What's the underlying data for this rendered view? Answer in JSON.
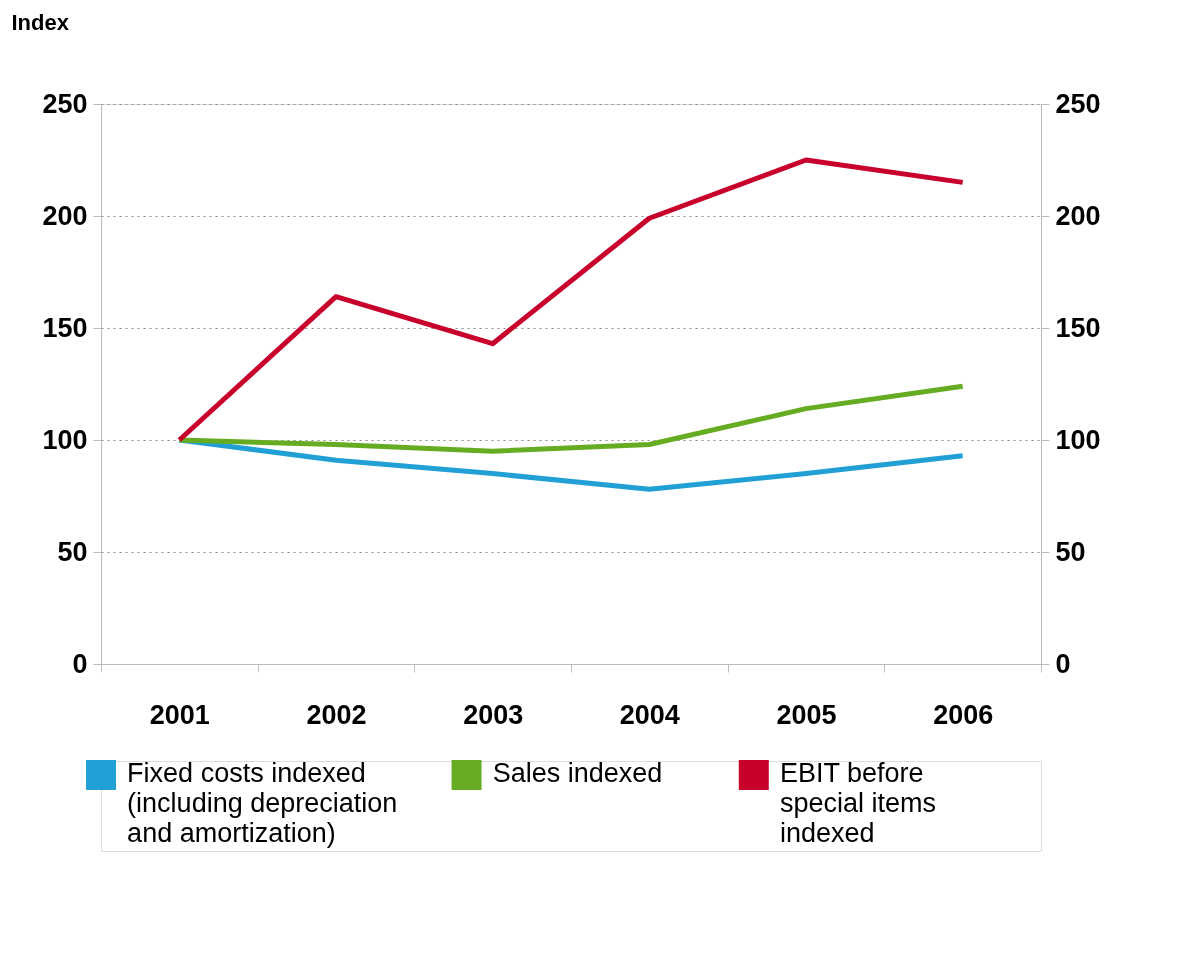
{
  "chart_data": {
    "type": "line",
    "ylabel": "Index",
    "categories": [
      "2001",
      "2002",
      "2003",
      "2004",
      "2005",
      "2006"
    ],
    "series": [
      {
        "name": "Fixed costs indexed (including depreciation and amortization)",
        "color": "#22a0d6",
        "values": [
          100,
          91,
          85,
          78,
          85,
          93
        ]
      },
      {
        "name": "Sales indexed",
        "color": "#66ac22",
        "values": [
          100,
          98,
          95,
          98,
          114,
          124
        ]
      },
      {
        "name": "EBIT before special items indexed",
        "color": "#c8002c",
        "values": [
          100,
          164,
          143,
          199,
          225,
          215
        ]
      }
    ],
    "ylim": [
      0,
      250
    ],
    "yticks": [
      0,
      50,
      100,
      150,
      200,
      250
    ],
    "y2lim": [
      0,
      250
    ],
    "y2ticks": [
      0,
      50,
      100,
      150,
      200,
      250
    ],
    "grid": "y",
    "legend": "bottom",
    "marker": "none",
    "line_style": "solid"
  }
}
